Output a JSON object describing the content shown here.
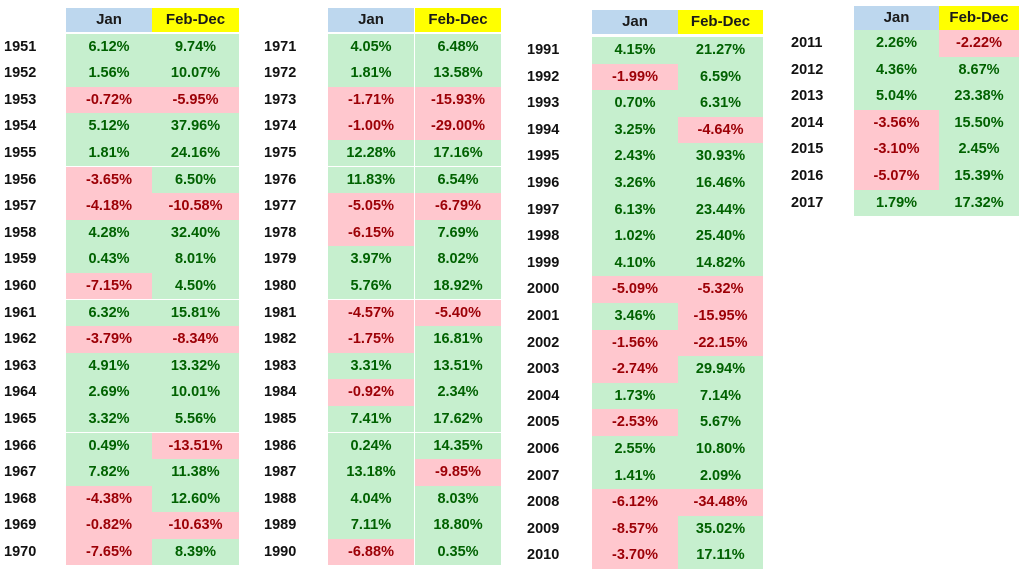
{
  "chart_data": {
    "type": "table",
    "headers": [
      "Jan",
      "Feb-Dec"
    ],
    "colors": {
      "jan_header": "#bdd7ee",
      "febdec_header": "#ffff00",
      "positive_bg": "#c6efce",
      "positive_text": "#006100",
      "negative_bg": "#ffc7ce",
      "negative_text": "#9c0006"
    },
    "blocks": [
      {
        "rows": [
          {
            "year": "1951",
            "jan": "6.12%",
            "febdec": "9.74%"
          },
          {
            "year": "1952",
            "jan": "1.56%",
            "febdec": "10.07%"
          },
          {
            "year": "1953",
            "jan": "-0.72%",
            "febdec": "-5.95%"
          },
          {
            "year": "1954",
            "jan": "5.12%",
            "febdec": "37.96%"
          },
          {
            "year": "1955",
            "jan": "1.81%",
            "febdec": "24.16%"
          },
          {
            "year": "1956",
            "jan": "-3.65%",
            "febdec": "6.50%"
          },
          {
            "year": "1957",
            "jan": "-4.18%",
            "febdec": "-10.58%"
          },
          {
            "year": "1958",
            "jan": "4.28%",
            "febdec": "32.40%"
          },
          {
            "year": "1959",
            "jan": "0.43%",
            "febdec": "8.01%"
          },
          {
            "year": "1960",
            "jan": "-7.15%",
            "febdec": "4.50%"
          },
          {
            "year": "1961",
            "jan": "6.32%",
            "febdec": "15.81%"
          },
          {
            "year": "1962",
            "jan": "-3.79%",
            "febdec": "-8.34%"
          },
          {
            "year": "1963",
            "jan": "4.91%",
            "febdec": "13.32%"
          },
          {
            "year": "1964",
            "jan": "2.69%",
            "febdec": "10.01%"
          },
          {
            "year": "1965",
            "jan": "3.32%",
            "febdec": "5.56%"
          },
          {
            "year": "1966",
            "jan": "0.49%",
            "febdec": "-13.51%"
          },
          {
            "year": "1967",
            "jan": "7.82%",
            "febdec": "11.38%"
          },
          {
            "year": "1968",
            "jan": "-4.38%",
            "febdec": "12.60%"
          },
          {
            "year": "1969",
            "jan": "-0.82%",
            "febdec": "-10.63%"
          },
          {
            "year": "1970",
            "jan": "-7.65%",
            "febdec": "8.39%"
          }
        ]
      },
      {
        "rows": [
          {
            "year": "1971",
            "jan": "4.05%",
            "febdec": "6.48%"
          },
          {
            "year": "1972",
            "jan": "1.81%",
            "febdec": "13.58%"
          },
          {
            "year": "1973",
            "jan": "-1.71%",
            "febdec": "-15.93%"
          },
          {
            "year": "1974",
            "jan": "-1.00%",
            "febdec": "-29.00%"
          },
          {
            "year": "1975",
            "jan": "12.28%",
            "febdec": "17.16%"
          },
          {
            "year": "1976",
            "jan": "11.83%",
            "febdec": "6.54%"
          },
          {
            "year": "1977",
            "jan": "-5.05%",
            "febdec": "-6.79%"
          },
          {
            "year": "1978",
            "jan": "-6.15%",
            "febdec": "7.69%"
          },
          {
            "year": "1979",
            "jan": "3.97%",
            "febdec": "8.02%"
          },
          {
            "year": "1980",
            "jan": "5.76%",
            "febdec": "18.92%"
          },
          {
            "year": "1981",
            "jan": "-4.57%",
            "febdec": "-5.40%"
          },
          {
            "year": "1982",
            "jan": "-1.75%",
            "febdec": "16.81%"
          },
          {
            "year": "1983",
            "jan": "3.31%",
            "febdec": "13.51%"
          },
          {
            "year": "1984",
            "jan": "-0.92%",
            "febdec": "2.34%"
          },
          {
            "year": "1985",
            "jan": "7.41%",
            "febdec": "17.62%"
          },
          {
            "year": "1986",
            "jan": "0.24%",
            "febdec": "14.35%"
          },
          {
            "year": "1987",
            "jan": "13.18%",
            "febdec": "-9.85%"
          },
          {
            "year": "1988",
            "jan": "4.04%",
            "febdec": "8.03%"
          },
          {
            "year": "1989",
            "jan": "7.11%",
            "febdec": "18.80%"
          },
          {
            "year": "1990",
            "jan": "-6.88%",
            "febdec": "0.35%"
          }
        ]
      },
      {
        "rows": [
          {
            "year": "1991",
            "jan": "4.15%",
            "febdec": "21.27%"
          },
          {
            "year": "1992",
            "jan": "-1.99%",
            "febdec": "6.59%"
          },
          {
            "year": "1993",
            "jan": "0.70%",
            "febdec": "6.31%"
          },
          {
            "year": "1994",
            "jan": "3.25%",
            "febdec": "-4.64%"
          },
          {
            "year": "1995",
            "jan": "2.43%",
            "febdec": "30.93%"
          },
          {
            "year": "1996",
            "jan": "3.26%",
            "febdec": "16.46%"
          },
          {
            "year": "1997",
            "jan": "6.13%",
            "febdec": "23.44%"
          },
          {
            "year": "1998",
            "jan": "1.02%",
            "febdec": "25.40%"
          },
          {
            "year": "1999",
            "jan": "4.10%",
            "febdec": "14.82%"
          },
          {
            "year": "2000",
            "jan": "-5.09%",
            "febdec": "-5.32%"
          },
          {
            "year": "2001",
            "jan": "3.46%",
            "febdec": "-15.95%"
          },
          {
            "year": "2002",
            "jan": "-1.56%",
            "febdec": "-22.15%"
          },
          {
            "year": "2003",
            "jan": "-2.74%",
            "febdec": "29.94%"
          },
          {
            "year": "2004",
            "jan": "1.73%",
            "febdec": "7.14%"
          },
          {
            "year": "2005",
            "jan": "-2.53%",
            "febdec": "5.67%"
          },
          {
            "year": "2006",
            "jan": "2.55%",
            "febdec": "10.80%"
          },
          {
            "year": "2007",
            "jan": "1.41%",
            "febdec": "2.09%"
          },
          {
            "year": "2008",
            "jan": "-6.12%",
            "febdec": "-34.48%"
          },
          {
            "year": "2009",
            "jan": "-8.57%",
            "febdec": "35.02%"
          },
          {
            "year": "2010",
            "jan": "-3.70%",
            "febdec": "17.11%"
          }
        ]
      },
      {
        "rows": [
          {
            "year": "2011",
            "jan": "2.26%",
            "febdec": "-2.22%"
          },
          {
            "year": "2012",
            "jan": "4.36%",
            "febdec": "8.67%"
          },
          {
            "year": "2013",
            "jan": "5.04%",
            "febdec": "23.38%"
          },
          {
            "year": "2014",
            "jan": "-3.56%",
            "febdec": "15.50%"
          },
          {
            "year": "2015",
            "jan": "-3.10%",
            "febdec": "2.45%"
          },
          {
            "year": "2016",
            "jan": "-5.07%",
            "febdec": "15.39%"
          },
          {
            "year": "2017",
            "jan": "1.79%",
            "febdec": "17.32%"
          }
        ]
      }
    ]
  }
}
